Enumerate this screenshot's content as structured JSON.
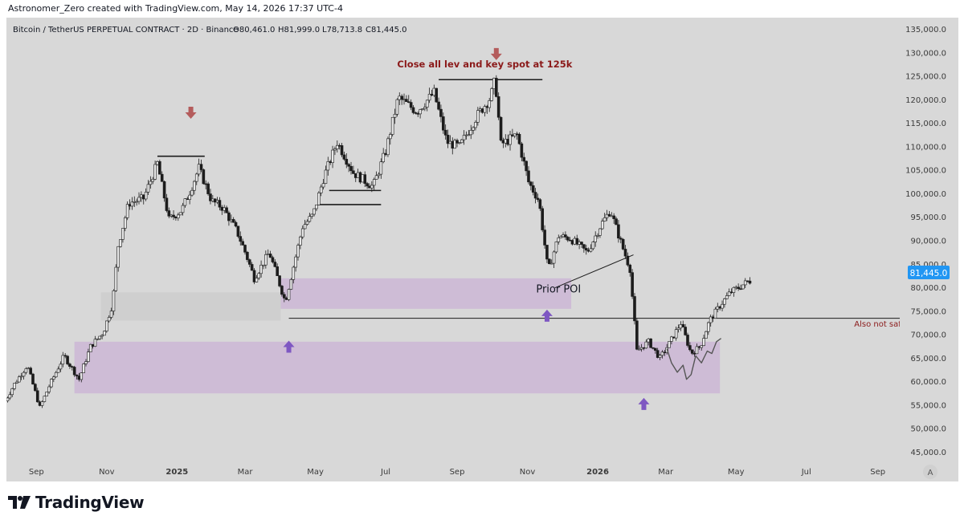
{
  "credit": "Astronomer_Zero created with TradingView.com, May 14, 2026 17:37 UTC-4",
  "brand": "TradingView",
  "legend": {
    "title": "Bitcoin / TetherUS PERPETUAL CONTRACT · 2D · Binance",
    "open": "O80,461.0",
    "high": "H81,999.0",
    "low": "L78,713.8",
    "close": "C81,445.0"
  },
  "last_price": "81,445.0",
  "colors": {
    "background": "#d8d8d8",
    "candle": "#1c1c1c",
    "zone_purple": "#cdbad6",
    "zone_grey": "#cfcfcf",
    "arrow_down": "#b45c5c",
    "arrow_up": "#7e57c2",
    "annotation_text": "#8b1a1a",
    "price_label_bg": "#2196f3"
  },
  "annotations": {
    "top_note": "Close all lev and key spot at 125k",
    "prior_poi": "Prior POI",
    "also_not_safe": "Also not safe"
  },
  "axis_corner": "A",
  "chart_data": {
    "type": "candlestick",
    "title": "Bitcoin / TetherUS PERPETUAL CONTRACT · 2D · Binance",
    "yticks": [
      45000,
      50000,
      55000,
      60000,
      65000,
      70000,
      75000,
      80000,
      85000,
      90000,
      95000,
      100000,
      105000,
      110000,
      115000,
      120000,
      125000,
      130000,
      135000
    ],
    "ytick_labels": [
      "45,000.0",
      "50,000.0",
      "55,000.0",
      "60,000.0",
      "65,000.0",
      "70,000.0",
      "75,000.0",
      "80,000.0",
      "85,000.0",
      "90,000.0",
      "95,000.0",
      "100,000.0",
      "105,000.0",
      "110,000.0",
      "115,000.0",
      "120,000.0",
      "125,000.0",
      "130,000.0",
      "135,000.0"
    ],
    "ylim": [
      42500,
      137500
    ],
    "xlim": [
      "2024-08-06",
      "2026-09-20"
    ],
    "xticks": [
      {
        "date": "2024-09-01",
        "label": "Sep",
        "bold": false
      },
      {
        "date": "2024-11-01",
        "label": "Nov",
        "bold": false
      },
      {
        "date": "2025-01-01",
        "label": "2025",
        "bold": true
      },
      {
        "date": "2025-03-01",
        "label": "Mar",
        "bold": false
      },
      {
        "date": "2025-05-01",
        "label": "May",
        "bold": false
      },
      {
        "date": "2025-07-01",
        "label": "Jul",
        "bold": false
      },
      {
        "date": "2025-09-01",
        "label": "Sep",
        "bold": false
      },
      {
        "date": "2025-11-01",
        "label": "Nov",
        "bold": false
      },
      {
        "date": "2026-01-01",
        "label": "2026",
        "bold": true
      },
      {
        "date": "2026-03-01",
        "label": "Mar",
        "bold": false
      },
      {
        "date": "2026-05-01",
        "label": "May",
        "bold": false
      },
      {
        "date": "2026-07-01",
        "label": "Jul",
        "bold": false
      },
      {
        "date": "2026-09-01",
        "label": "Sep",
        "bold": false
      }
    ],
    "price_path": [
      [
        "2024-08-05",
        55000
      ],
      [
        "2024-08-15",
        59500
      ],
      [
        "2024-08-26",
        63500
      ],
      [
        "2024-09-06",
        54500
      ],
      [
        "2024-09-14",
        59000
      ],
      [
        "2024-09-27",
        65500
      ],
      [
        "2024-10-10",
        60500
      ],
      [
        "2024-10-20",
        67500
      ],
      [
        "2024-10-31",
        70500
      ],
      [
        "2024-11-08",
        76500
      ],
      [
        "2024-11-13",
        89000
      ],
      [
        "2024-11-22",
        98000
      ],
      [
        "2024-12-05",
        99000
      ],
      [
        "2024-12-17",
        106500
      ],
      [
        "2024-12-27",
        94500
      ],
      [
        "2025-01-07",
        96500
      ],
      [
        "2025-01-15",
        101000
      ],
      [
        "2025-01-22",
        105500
      ],
      [
        "2025-02-02",
        98500
      ],
      [
        "2025-02-12",
        97000
      ],
      [
        "2025-02-24",
        92000
      ],
      [
        "2025-03-04",
        87000
      ],
      [
        "2025-03-11",
        82000
      ],
      [
        "2025-03-24",
        87500
      ],
      [
        "2025-04-07",
        77000
      ],
      [
        "2025-04-14",
        84500
      ],
      [
        "2025-04-22",
        93000
      ],
      [
        "2025-05-01",
        95500
      ],
      [
        "2025-05-11",
        104000
      ],
      [
        "2025-05-22",
        111000
      ],
      [
        "2025-06-05",
        104500
      ],
      [
        "2025-06-22",
        101500
      ],
      [
        "2025-07-03",
        109000
      ],
      [
        "2025-07-14",
        120500
      ],
      [
        "2025-07-30",
        117500
      ],
      [
        "2025-08-14",
        121500
      ],
      [
        "2025-08-25",
        111000
      ],
      [
        "2025-09-05",
        110000
      ],
      [
        "2025-09-20",
        116500
      ],
      [
        "2025-10-02",
        120500
      ],
      [
        "2025-10-06",
        124500
      ],
      [
        "2025-10-11",
        110500
      ],
      [
        "2025-10-25",
        112500
      ],
      [
        "2025-11-04",
        102500
      ],
      [
        "2025-11-13",
        98500
      ],
      [
        "2025-11-21",
        83500
      ],
      [
        "2025-11-30",
        91000
      ],
      [
        "2025-12-10",
        90500
      ],
      [
        "2025-12-25",
        87500
      ],
      [
        "2026-01-06",
        93500
      ],
      [
        "2026-01-14",
        96500
      ],
      [
        "2026-01-24",
        89000
      ],
      [
        "2026-01-31",
        84000
      ],
      [
        "2026-02-06",
        66500
      ],
      [
        "2026-02-16",
        68500
      ],
      [
        "2026-02-26",
        65000
      ],
      [
        "2026-03-07",
        68500
      ],
      [
        "2026-03-16",
        72500
      ],
      [
        "2026-03-25",
        66000
      ],
      [
        "2026-04-02",
        67500
      ],
      [
        "2026-04-10",
        73000
      ],
      [
        "2026-04-20",
        76500
      ],
      [
        "2026-04-28",
        79000
      ],
      [
        "2026-05-05",
        80000
      ],
      [
        "2026-05-14",
        81445
      ]
    ],
    "zones": [
      {
        "from": "2024-10-04",
        "to": "2026-04-17",
        "low": 57500,
        "high": 68500,
        "color": "purple"
      },
      {
        "from": "2025-04-01",
        "to": "2025-12-09",
        "low": 75500,
        "high": 82000,
        "color": "purple"
      },
      {
        "from": "2024-10-27",
        "to": "2025-04-01",
        "low": 73000,
        "high": 79000,
        "color": "grey"
      }
    ],
    "levels": [
      {
        "from": "2025-04-08",
        "to": "2026-09-20",
        "price": 73500
      },
      {
        "from": "2024-12-15",
        "to": "2025-01-25",
        "price": 108000
      },
      {
        "from": "2025-08-16",
        "to": "2025-11-14",
        "price": 124300
      },
      {
        "from": "2025-05-13",
        "to": "2025-06-27",
        "price": 100700
      },
      {
        "from": "2025-05-03",
        "to": "2025-06-27",
        "price": 97700
      }
    ],
    "annotations": [
      {
        "text": "Close all lev and key spot at 125k",
        "date": "2025-09-25",
        "price": 126900
      },
      {
        "text": "Prior POI",
        "date": "2025-11-28",
        "price": 79000
      },
      {
        "text": "Also not safe",
        "date": "2026-09-03",
        "price": 71700
      }
    ],
    "arrows_down": [
      {
        "date": "2025-01-13",
        "price": 117000
      },
      {
        "date": "2025-10-05",
        "price": 129500
      }
    ],
    "arrows_up": [
      {
        "date": "2025-04-08",
        "price": 67700
      },
      {
        "date": "2025-11-18",
        "price": 74300
      },
      {
        "date": "2026-02-10",
        "price": 55500
      }
    ],
    "last_price": 81445
  }
}
